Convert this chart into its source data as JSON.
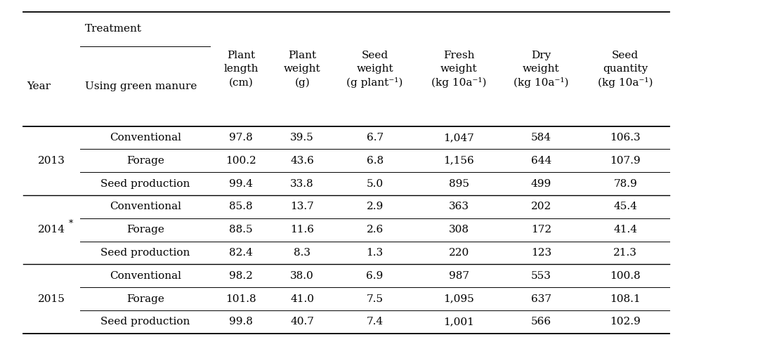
{
  "rows": [
    [
      "2013",
      "Conventional",
      "97.8",
      "39.5",
      "6.7",
      "1,047",
      "584",
      "106.3"
    ],
    [
      "",
      "Forage",
      "100.2",
      "43.6",
      "6.8",
      "1,156",
      "644",
      "107.9"
    ],
    [
      "",
      "Seed production",
      "99.4",
      "33.8",
      "5.0",
      "895",
      "499",
      "78.9"
    ],
    [
      "2014*",
      "Conventional",
      "85.8",
      "13.7",
      "2.9",
      "363",
      "202",
      "45.4"
    ],
    [
      "",
      "Forage",
      "88.5",
      "11.6",
      "2.6",
      "308",
      "172",
      "41.4"
    ],
    [
      "",
      "Seed production",
      "82.4",
      "8.3",
      "1.3",
      "220",
      "123",
      "21.3"
    ],
    [
      "2015",
      "Conventional",
      "98.2",
      "38.0",
      "6.9",
      "987",
      "553",
      "100.8"
    ],
    [
      "",
      "Forage",
      "101.8",
      "41.0",
      "7.5",
      "1,095",
      "637",
      "108.1"
    ],
    [
      "",
      "Seed production",
      "99.8",
      "40.7",
      "7.4",
      "1,001",
      "566",
      "102.9"
    ]
  ],
  "col_headers": [
    "Plant\nlength\n(cm)",
    "Plant\nweight\n(g)",
    "Seed\nweight\n(g plant⁻¹)",
    "Fresh\nweight\n(kg 10a⁻¹)",
    "Dry\nweight\n(kg 10a⁻¹)",
    "Seed\nquantity\n(kg 10a⁻¹)"
  ],
  "background_color": "#ffffff",
  "text_color": "#000000",
  "font_size": 11.0
}
